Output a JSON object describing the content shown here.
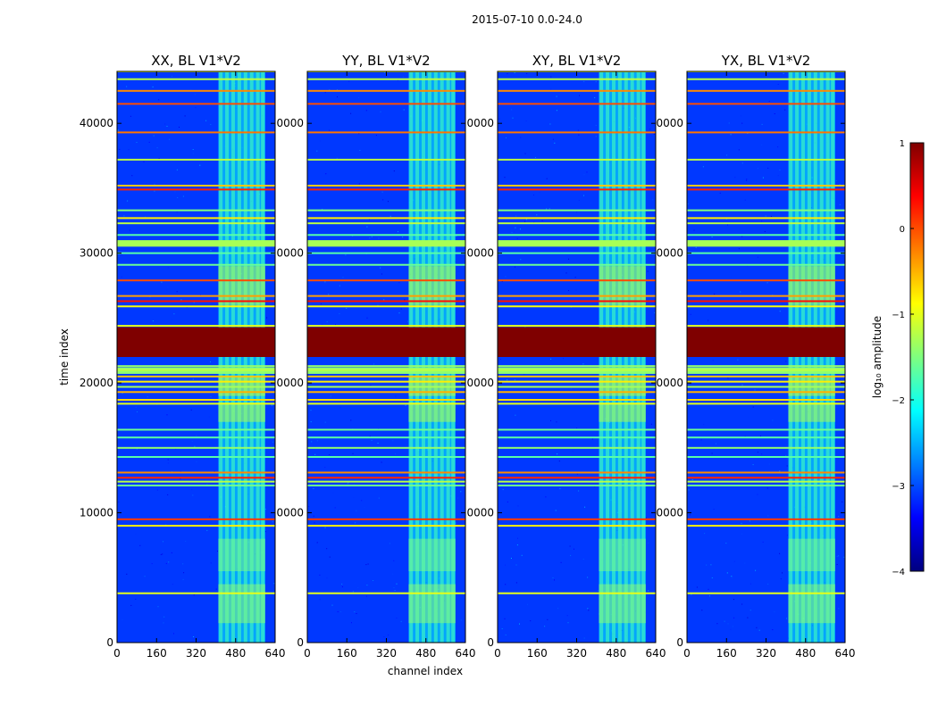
{
  "figure_title": "2015-07-10 0.0-24.0",
  "chart_data": {
    "type": "heatmap",
    "title": "2015-07-10 0.0-24.0",
    "xlabel": "channel index",
    "ylabel": "time index",
    "xlim": [
      0,
      640
    ],
    "ylim": [
      0,
      44000
    ],
    "x_ticks": [
      0,
      160,
      320,
      480,
      640
    ],
    "y_ticks": [
      0,
      10000,
      20000,
      30000,
      40000
    ],
    "y_tick_labels_first_panel": [
      "0",
      "10000",
      "20000",
      "30000",
      "40000"
    ],
    "y_tick_labels_clipped": [
      "0",
      "0000",
      "0000",
      "0000",
      "0000"
    ],
    "panels": [
      {
        "name": "XX",
        "title": "XX, BL V1*V2"
      },
      {
        "name": "YY",
        "title": "YY, BL V1*V2"
      },
      {
        "name": "XY",
        "title": "XY, BL V1*V2"
      },
      {
        "name": "YX",
        "title": "YX, BL V1*V2"
      }
    ],
    "colorbar": {
      "label": "log₁₀ amplitude",
      "range": [
        -4,
        1
      ],
      "ticks": [
        1,
        0,
        -1,
        -2,
        -3,
        -4
      ],
      "tick_labels": [
        "1",
        "0",
        "−1",
        "−2",
        "−3",
        "−4"
      ],
      "colormap": "jet",
      "colors": [
        "#00007f",
        "#0000ff",
        "#007fff",
        "#00ffff",
        "#7fff7f",
        "#ffff00",
        "#ff7f00",
        "#ff0000",
        "#7f0000"
      ]
    },
    "background_level": -3.1,
    "high_amplitude_band": {
      "time_range": [
        22000,
        24300
      ],
      "level": 1
    },
    "rfi_time_lines": [
      {
        "t": 3800,
        "level": -1.0
      },
      {
        "t": 9000,
        "level": -0.8
      },
      {
        "t": 9500,
        "level": 0.1
      },
      {
        "t": 12100,
        "level": -1.6
      },
      {
        "t": 12400,
        "level": -1.2
      },
      {
        "t": 12700,
        "level": 0.2
      },
      {
        "t": 13100,
        "level": -0.3
      },
      {
        "t": 14300,
        "level": -1.7
      },
      {
        "t": 15000,
        "level": -1.4
      },
      {
        "t": 15800,
        "level": -1.7
      },
      {
        "t": 16400,
        "level": -1.6
      },
      {
        "t": 18400,
        "level": -1.0
      },
      {
        "t": 18700,
        "level": -0.7
      },
      {
        "t": 19300,
        "level": -0.5
      },
      {
        "t": 19700,
        "level": -1.3
      },
      {
        "t": 20100,
        "level": -0.8
      },
      {
        "t": 20500,
        "level": -0.6
      },
      {
        "t": 21000,
        "level": -1.2
      },
      {
        "t": 21300,
        "level": -1.4
      },
      {
        "t": 24400,
        "level": -1.0
      },
      {
        "t": 25900,
        "level": -0.9
      },
      {
        "t": 26300,
        "level": 0.3
      },
      {
        "t": 26700,
        "level": -0.4
      },
      {
        "t": 27900,
        "level": 0.0
      },
      {
        "t": 29100,
        "level": -1.6
      },
      {
        "t": 30000,
        "level": -1.7
      },
      {
        "t": 31400,
        "level": -1.7
      },
      {
        "t": 32300,
        "level": -1.2
      },
      {
        "t": 32700,
        "level": -0.8
      },
      {
        "t": 33300,
        "level": -1.5
      },
      {
        "t": 34900,
        "level": 0.2
      },
      {
        "t": 35200,
        "level": -0.6
      },
      {
        "t": 37200,
        "level": -1.2
      },
      {
        "t": 39300,
        "level": -0.2
      },
      {
        "t": 41500,
        "level": 0.0
      },
      {
        "t": 42500,
        "level": -0.3
      },
      {
        "t": 43400,
        "level": -1.2
      },
      {
        "t": 44000,
        "level": -1.0
      }
    ],
    "rfi_time_bands": [
      {
        "t0": 30500,
        "t1": 31000,
        "level": -1.3
      },
      {
        "t0": 20700,
        "t1": 21200,
        "level": -1.4
      }
    ],
    "rfi_channel_block": {
      "channel_range": [
        410,
        600
      ],
      "level": -2.1,
      "bright_columns": [
        420,
        445,
        470,
        495,
        520,
        545,
        570,
        590
      ]
    }
  }
}
